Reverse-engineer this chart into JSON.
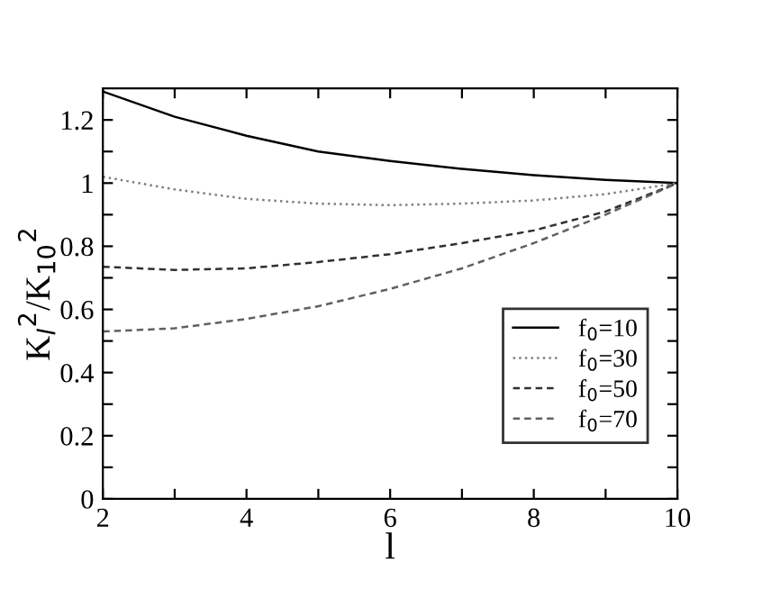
{
  "chart_data": {
    "type": "line",
    "xlabel": "l",
    "ylabel": "K$_{l}$$^{2}$/K$_{10}$$^{2}$",
    "x": [
      2,
      3,
      4,
      5,
      6,
      7,
      8,
      9,
      10
    ],
    "series": [
      {
        "name": "f$_{0}$=10",
        "color": "#000000",
        "line_style": "solid",
        "values": [
          1.29,
          1.21,
          1.15,
          1.1,
          1.07,
          1.045,
          1.025,
          1.01,
          1.0
        ]
      },
      {
        "name": "f$_{0}$=30",
        "color": "#808080",
        "line_style": "dotted",
        "values": [
          1.02,
          0.98,
          0.95,
          0.935,
          0.93,
          0.935,
          0.945,
          0.965,
          1.0
        ]
      },
      {
        "name": "f$_{0}$=50",
        "color": "#303030",
        "line_style": "dashed",
        "values": [
          0.735,
          0.725,
          0.73,
          0.75,
          0.775,
          0.81,
          0.85,
          0.91,
          1.0
        ]
      },
      {
        "name": "f$_{0}$=70",
        "color": "#606060",
        "line_style": "dashed",
        "values": [
          0.53,
          0.54,
          0.57,
          0.61,
          0.665,
          0.73,
          0.81,
          0.9,
          1.0
        ]
      }
    ],
    "xlim": [
      2,
      10
    ],
    "ylim": [
      0,
      1.3
    ],
    "xticks": [
      2,
      {
        "value": 3,
        "label": null
      },
      4,
      {
        "value": 5,
        "label": null
      },
      6,
      {
        "value": 7,
        "label": null
      },
      8,
      {
        "value": 9,
        "label": null
      },
      10
    ],
    "yticks": [
      {
        "value": 0,
        "label": "0"
      },
      {
        "value": 0.1,
        "label": null
      },
      0.2,
      {
        "value": 0.3,
        "label": null
      },
      0.4,
      {
        "value": 0.5,
        "label": null
      },
      0.6,
      {
        "value": 0.7,
        "label": null
      },
      0.8,
      {
        "value": 0.9,
        "label": null
      },
      {
        "value": 1,
        "label": "1"
      },
      {
        "value": 1.1,
        "label": null
      },
      1.2
    ],
    "grid": false,
    "legend": "right",
    "marker": "none"
  }
}
